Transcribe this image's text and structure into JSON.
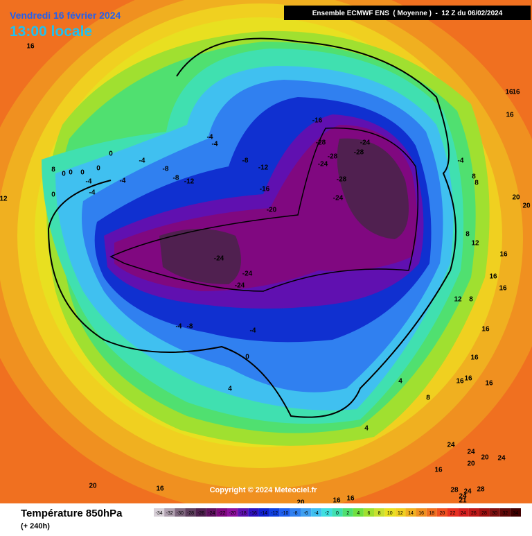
{
  "header": {
    "date": "Vendredi 16 février 2024",
    "time": "13:00 locale",
    "banner": "Ensemble ECMWF ENS  ( Moyenne )  -  12 Z du 06/02/2024"
  },
  "footer": {
    "variable": "Température 850hPa",
    "lead": "(+ 240h)",
    "copyright": "Copyright © 2024 Meteociel.fr"
  },
  "colorbar": {
    "ticks": [
      -34,
      -32,
      -30,
      -28,
      -26,
      -24,
      -22,
      -20,
      -18,
      -16,
      -14,
      -12,
      -10,
      -8,
      -6,
      -4,
      -2,
      0,
      2,
      4,
      6,
      8,
      10,
      12,
      14,
      16,
      18,
      20,
      22,
      24,
      26,
      28,
      30,
      32,
      34
    ],
    "colors": [
      "#d8d0d8",
      "#b0a0b0",
      "#806880",
      "#604060",
      "#502050",
      "#601060",
      "#800880",
      "#9010a0",
      "#6010b0",
      "#3010c0",
      "#1020d0",
      "#1040e0",
      "#2060f0",
      "#3080f0",
      "#40a0f0",
      "#40c0f0",
      "#40e0e0",
      "#40e0b0",
      "#50e070",
      "#70e040",
      "#a0e030",
      "#c8e030",
      "#e8e020",
      "#f0d020",
      "#f0b020",
      "#f09020",
      "#f07020",
      "#f05020",
      "#e83020",
      "#d82020",
      "#c01818",
      "#a01010",
      "#801010",
      "#600808",
      "#400000"
    ]
  },
  "map_labels": [
    "16",
    "-4",
    "-4",
    "-4",
    "0",
    "8",
    "0",
    "0",
    "0",
    "-4",
    "0",
    "-4",
    "-4",
    "0",
    "12",
    "-8",
    "-8",
    "-12",
    "-8",
    "-12",
    "-16",
    "-20",
    "-16",
    "-28",
    "-24",
    "-28",
    "-28",
    "-24",
    "-28",
    "-24",
    "-24",
    "-24",
    "-24",
    "-4",
    "-8",
    "-4",
    "0",
    "4",
    "-4",
    "8",
    "8",
    "16",
    "16",
    "16",
    "8",
    "12",
    "16",
    "16",
    "16",
    "12",
    "8",
    "16",
    "16",
    "16",
    "16",
    "16",
    "8",
    "4",
    "4",
    "24",
    "24",
    "20",
    "24",
    "20",
    "16",
    "28",
    "24",
    "28",
    "24",
    "21",
    "20",
    "16",
    "20",
    "16",
    "16",
    "20",
    "20"
  ]
}
